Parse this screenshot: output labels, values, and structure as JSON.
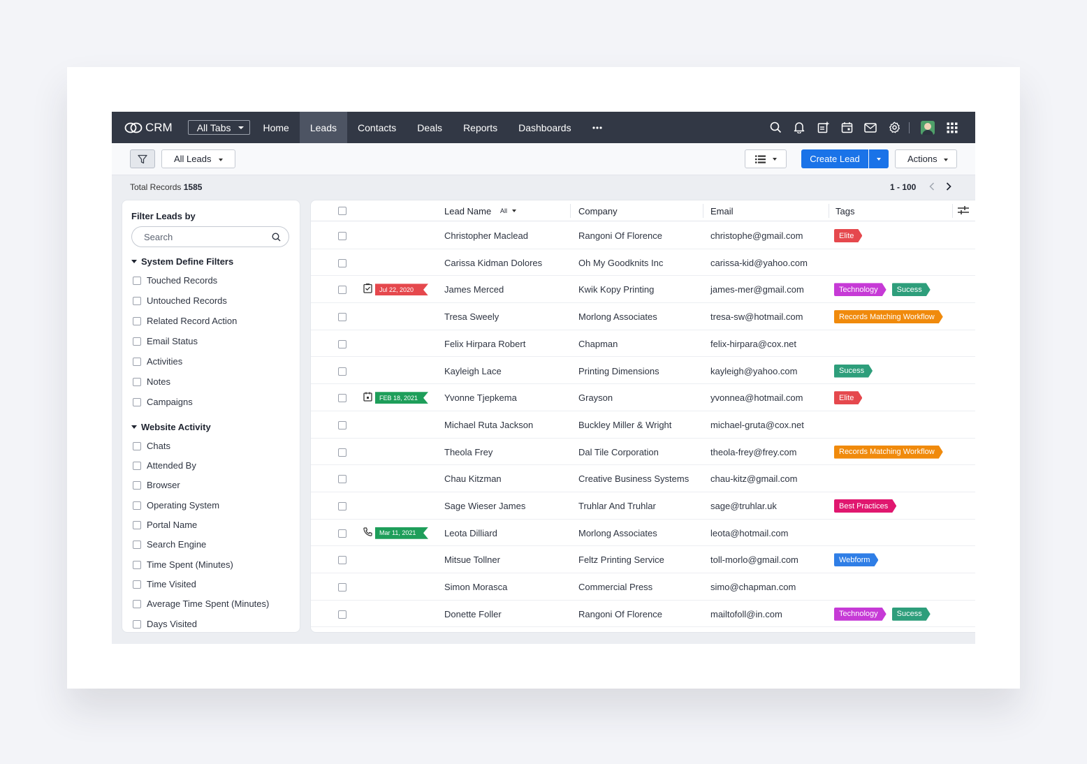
{
  "nav": {
    "brand": "CRM",
    "all_tabs": "All Tabs",
    "tabs": [
      {
        "label": "Home",
        "active": false
      },
      {
        "label": "Leads",
        "active": true
      },
      {
        "label": "Contacts",
        "active": false
      },
      {
        "label": "Deals",
        "active": false
      },
      {
        "label": "Reports",
        "active": false
      },
      {
        "label": "Dashboards",
        "active": false
      }
    ],
    "more": "•••",
    "icons": [
      "search-icon",
      "bell-icon",
      "add-note-icon",
      "calendar-icon",
      "mail-icon",
      "gear-icon",
      "avatar",
      "apps-grid-icon"
    ]
  },
  "toolbar": {
    "view_label": "All Leads",
    "create_label": "Create Lead",
    "actions_label": "Actions"
  },
  "records": {
    "total_label": "Total Records",
    "total_value": "1585",
    "range": "1 - 100"
  },
  "filters": {
    "title": "Filter Leads by",
    "search_placeholder": "Search",
    "group1": "System Define Filters",
    "group1_items": [
      "Touched Records",
      "Untouched Records",
      "Related Record Action",
      "Email Status",
      "Activities",
      "Notes",
      "Campaigns"
    ],
    "group2": "Website Activity",
    "group2_items": [
      "Chats",
      "Attended By",
      "Browser",
      "Operating System",
      "Portal Name",
      "Search Engine",
      "Time Spent (Minutes)",
      "Time Visited",
      "Average Time Spent (Minutes)",
      "Days Visited"
    ]
  },
  "table": {
    "headers": {
      "name": "Lead Name",
      "name_filter": "All",
      "company": "Company",
      "email": "Email",
      "tags": "Tags"
    },
    "rows": [
      {
        "name": "Christopher Maclead",
        "company": "Rangoni Of Florence",
        "email": "christophe@gmail.com",
        "tags": [
          {
            "label": "Elite",
            "color": "#e5484d"
          }
        ]
      },
      {
        "name": "Carissa Kidman Dolores",
        "company": "Oh My Goodknits Inc",
        "email": "carissa-kid@yahoo.com",
        "tags": []
      },
      {
        "name": "James Merced",
        "company": "Kwik Kopy Printing",
        "email": "james-mer@gmail.com",
        "activity": {
          "icon": "task-icon",
          "date": "Jul 22, 2020",
          "color": "#e5484d"
        },
        "tags": [
          {
            "label": "Technology",
            "color": "#c63ad6"
          },
          {
            "label": "Sucess",
            "color": "#2e9e7b"
          }
        ]
      },
      {
        "name": "Tresa Sweely",
        "company": "Morlong Associates",
        "email": " tresa-sw@hotmail.com",
        "tags": [
          {
            "label": "Records Matching Workflow",
            "color": "#f08a0c"
          }
        ]
      },
      {
        "name": "Felix Hirpara Robert",
        "company": "Chapman",
        "email": "felix-hirpara@cox.net",
        "tags": []
      },
      {
        "name": "Kayleigh Lace",
        "company": "Printing Dimensions",
        "email": "kayleigh@yahoo.com",
        "tags": [
          {
            "label": "Sucess",
            "color": "#2e9e7b"
          }
        ]
      },
      {
        "name": "Yvonne Tjepkema",
        "company": "Grayson",
        "email": "yvonnea@hotmail.com",
        "activity": {
          "icon": "event-icon",
          "date": "FEB 18, 2021",
          "color": "#1e9e5a"
        },
        "tags": [
          {
            "label": "Elite",
            "color": "#e5484d"
          }
        ]
      },
      {
        "name": "Michael Ruta Jackson",
        "company": "Buckley Miller & Wright",
        "email": "michael-gruta@cox.net",
        "tags": []
      },
      {
        "name": "Theola Frey",
        "company": "Dal Tile Corporation",
        "email": "theola-frey@frey.com",
        "tags": [
          {
            "label": "Records Matching Workflow",
            "color": "#f08a0c"
          }
        ]
      },
      {
        "name": "Chau Kitzman",
        "company": "Creative Business Systems",
        "email": "chau-kitz@gmail.com",
        "tags": []
      },
      {
        "name": "Sage Wieser James",
        "company": "Truhlar And Truhlar",
        "email": "sage@truhlar.uk",
        "tags": [
          {
            "label": "Best Practices",
            "color": "#e0176f"
          }
        ]
      },
      {
        "name": "Leota Dilliard",
        "company": "Morlong Associates",
        "email": "leota@hotmail.com",
        "activity": {
          "icon": "phone-icon",
          "date": "Mar 11, 2021",
          "color": "#1e9e5a"
        },
        "tags": []
      },
      {
        "name": "Mitsue Tollner",
        "company": "Feltz Printing Service",
        "email": "toll-morlo@gmail.com",
        "tags": [
          {
            "label": "Webform",
            "color": "#2f7ee6"
          }
        ]
      },
      {
        "name": "Simon Morasca",
        "company": "Commercial Press",
        "email": "simo@chapman.com",
        "tags": []
      },
      {
        "name": "Donette Foller",
        "company": "Rangoni Of Florence",
        "email": "mailtofoll@in.com",
        "tags": [
          {
            "label": "Technology",
            "color": "#c63ad6"
          },
          {
            "label": "Sucess",
            "color": "#2e9e7b"
          }
        ]
      }
    ]
  },
  "colors": {
    "nav_bg": "#323845",
    "nav_active": "#4d5463",
    "primary": "#1a73e8",
    "page_bg": "#eceef2"
  }
}
